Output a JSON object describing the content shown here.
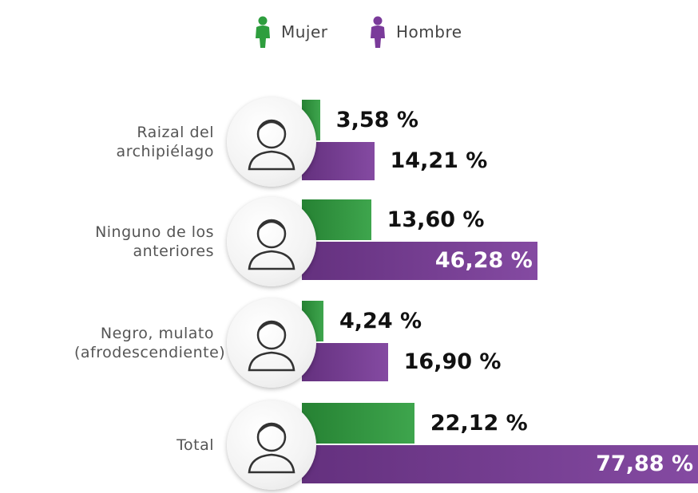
{
  "chart_data": {
    "type": "bar",
    "categories": [
      "Raizal del archipiélago",
      "Ninguno de los anteriores",
      "Negro, mulato (afrodescendiente)",
      "Total"
    ],
    "series": [
      {
        "name": "Mujer",
        "color": "#2e9e3e",
        "values": [
          3.58,
          13.6,
          4.24,
          22.12
        ],
        "value_labels": [
          "3,58 %",
          "13,60 %",
          "4,24 %",
          "22,12 %"
        ]
      },
      {
        "name": "Hombre",
        "color": "#7a3b9a",
        "values": [
          14.21,
          46.28,
          16.9,
          77.88
        ],
        "value_labels": [
          "14,21 %",
          "46,28 %",
          "16,90 %",
          "77,88 %"
        ]
      }
    ]
  }
}
